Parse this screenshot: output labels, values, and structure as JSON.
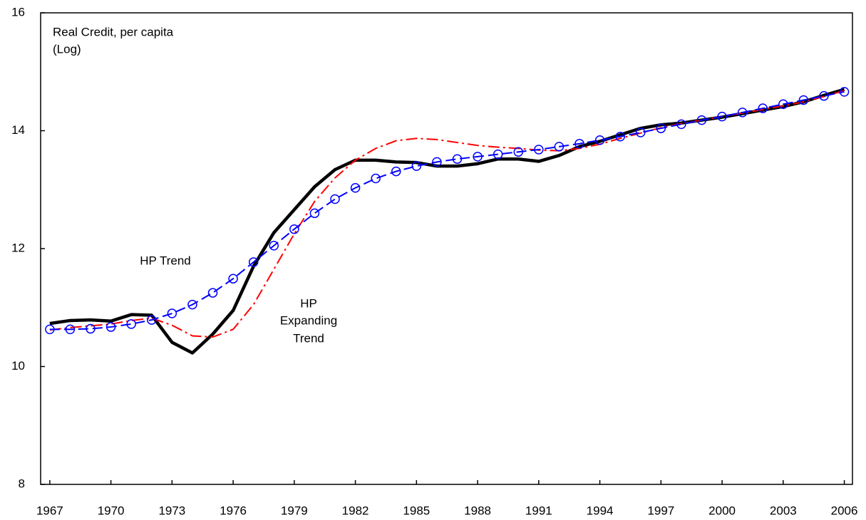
{
  "chart_data": {
    "type": "line",
    "annotations": [
      "Real Credit, per capita",
      "(Log)",
      "HP Trend",
      "HP",
      "Expanding",
      "Trend"
    ],
    "x": [
      1967,
      1968,
      1969,
      1970,
      1971,
      1972,
      1973,
      1974,
      1975,
      1976,
      1977,
      1978,
      1979,
      1980,
      1981,
      1982,
      1983,
      1984,
      1985,
      1986,
      1987,
      1988,
      1989,
      1990,
      1991,
      1992,
      1993,
      1994,
      1995,
      1996,
      1997,
      1998,
      1999,
      2000,
      2001,
      2002,
      2003,
      2004,
      2005,
      2006
    ],
    "series": [
      {
        "color": "#000000",
        "style": "solid",
        "values": [
          10.73,
          10.78,
          10.79,
          10.77,
          10.88,
          10.87,
          10.41,
          10.23,
          10.55,
          10.95,
          11.7,
          12.27,
          12.66,
          13.05,
          13.34,
          13.5,
          13.5,
          13.47,
          13.46,
          13.4,
          13.4,
          13.44,
          13.52,
          13.52,
          13.48,
          13.58,
          13.73,
          13.82,
          13.93,
          14.04,
          14.1,
          14.13,
          14.18,
          14.23,
          14.29,
          14.35,
          14.41,
          14.49,
          14.6,
          14.7
        ]
      },
      {
        "color": "#0000ff",
        "style": "dashed",
        "marker": "circle",
        "values": [
          10.63,
          10.63,
          10.64,
          10.67,
          10.72,
          10.79,
          10.9,
          11.05,
          11.25,
          11.49,
          11.77,
          12.05,
          12.33,
          12.6,
          12.84,
          13.03,
          13.19,
          13.31,
          13.4,
          13.47,
          13.52,
          13.56,
          13.6,
          13.64,
          13.68,
          13.73,
          13.78,
          13.84,
          13.9,
          13.97,
          14.04,
          14.11,
          14.18,
          14.24,
          14.31,
          14.38,
          14.45,
          14.52,
          14.59,
          14.66
        ]
      },
      {
        "color": "#ff0000",
        "style": "dashdot",
        "values": [
          10.62,
          10.66,
          10.69,
          10.72,
          10.78,
          10.82,
          10.7,
          10.52,
          10.5,
          10.63,
          11.05,
          11.65,
          12.25,
          12.8,
          13.2,
          13.5,
          13.7,
          13.83,
          13.87,
          13.85,
          13.8,
          13.75,
          13.72,
          13.7,
          13.67,
          13.66,
          13.7,
          13.77,
          13.87,
          13.96,
          14.05,
          14.12,
          14.18,
          14.24,
          14.3,
          14.36,
          14.42,
          14.49,
          14.58,
          14.68
        ]
      }
    ],
    "xlim": [
      1966.55,
      2006.4
    ],
    "xticks": [
      1967,
      1970,
      1973,
      1976,
      1979,
      1982,
      1985,
      1988,
      1991,
      1994,
      1997,
      2000,
      2003,
      2006
    ],
    "ylim": [
      8,
      16
    ],
    "yticks": [
      8,
      10,
      12,
      14,
      16
    ],
    "grid": false
  }
}
